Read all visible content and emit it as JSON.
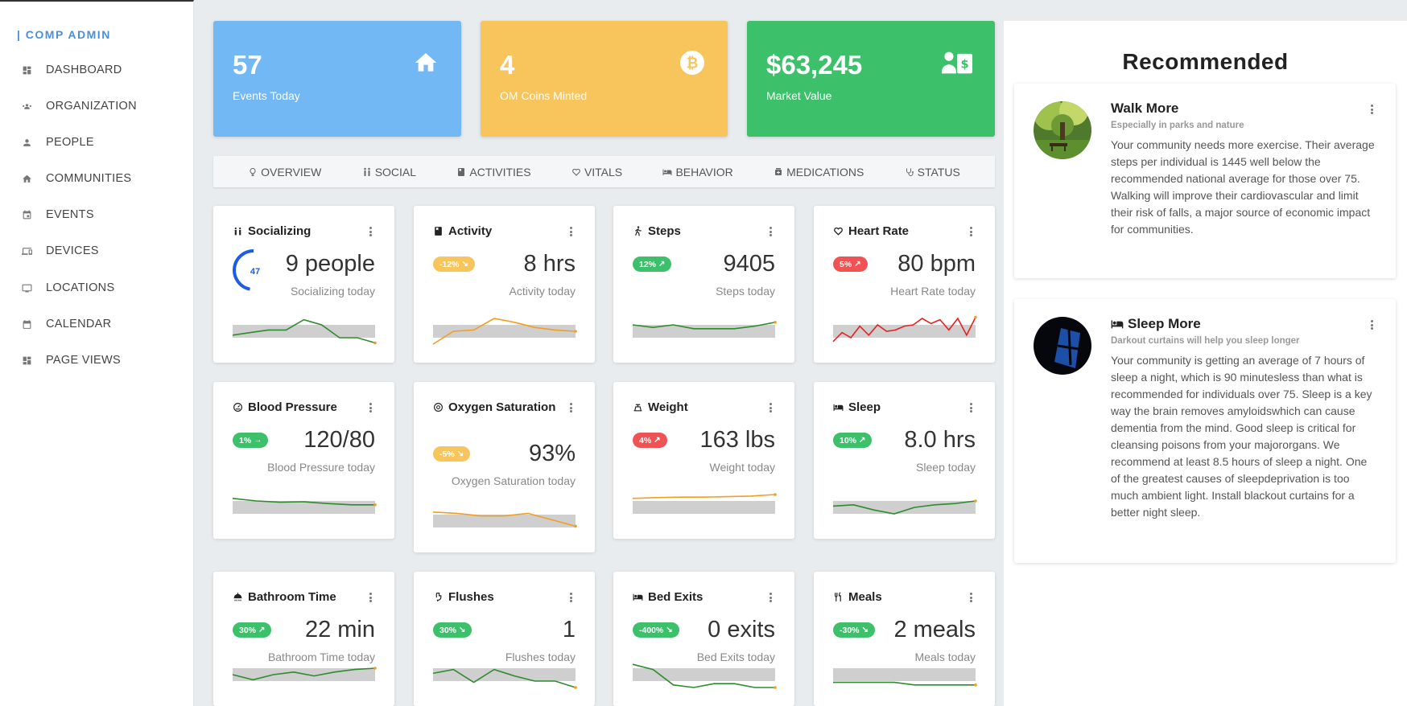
{
  "brand": "| COMP ADMIN",
  "sidebar": {
    "items": [
      {
        "label": "DASHBOARD",
        "icon": "dashboard-icon"
      },
      {
        "label": "ORGANIZATION",
        "icon": "group-icon"
      },
      {
        "label": "PEOPLE",
        "icon": "person-icon"
      },
      {
        "label": "COMMUNITIES",
        "icon": "home-icon"
      },
      {
        "label": "EVENTS",
        "icon": "event-icon"
      },
      {
        "label": "DEVICES",
        "icon": "devices-icon"
      },
      {
        "label": "LOCATIONS",
        "icon": "monitor-icon"
      },
      {
        "label": "CALENDAR",
        "icon": "calendar-icon"
      },
      {
        "label": "PAGE VIEWS",
        "icon": "dashboard-icon"
      }
    ]
  },
  "stats": [
    {
      "value": "57",
      "label": "Events Today",
      "color": "#72b8f5",
      "icon": "home-icon"
    },
    {
      "value": "4",
      "label": "OM Coins Minted",
      "color": "#f8c55c",
      "icon": "bitcoin-icon"
    },
    {
      "value": "$63,245",
      "label": "Market Value",
      "color": "#3cc06a",
      "icon": "dollar-card-icon"
    }
  ],
  "tabs": [
    "OVERVIEW",
    "SOCIAL",
    "ACTIVITIES",
    "VITALS",
    "BEHAVIOR",
    "MEDICATIONS",
    "STATUS"
  ],
  "colors": {
    "green": "#3cc06a",
    "orange": "#f8c55c",
    "red": "#f05353",
    "blue": "#1f5ce6",
    "spark_band": "#cfcfcf"
  },
  "cards": [
    {
      "title": "Socializing",
      "value": "9 people",
      "sub": "Socializing today",
      "gauge": "47",
      "gauge_level": 0.47,
      "line": "#2e8b2e",
      "spark": [
        0.35,
        0.45,
        0.55,
        0.55,
        0.95,
        0.75,
        0.25,
        0.25,
        0.05
      ]
    },
    {
      "title": "Activity",
      "badge": "-12%",
      "badge_color": "#f8c55c",
      "trend": "down",
      "value": "8 hrs",
      "sub": "Activity today",
      "line": "#f59d1e",
      "spark": [
        0.0,
        0.5,
        0.55,
        1.0,
        0.85,
        0.65,
        0.55,
        0.5
      ]
    },
    {
      "title": "Steps",
      "badge": "12%",
      "badge_color": "#3cc06a",
      "trend": "up",
      "value": "9405",
      "sub": "Steps today",
      "line": "#2e8b2e",
      "spark": [
        0.75,
        0.65,
        0.75,
        0.6,
        0.6,
        0.6,
        0.7,
        0.85
      ]
    },
    {
      "title": "Heart Rate",
      "badge": "5%",
      "badge_color": "#f05353",
      "trend": "up",
      "value": "80 bpm",
      "sub": "Heart Rate today",
      "line": "#e82020",
      "spark": [
        0.1,
        0.45,
        0.25,
        0.7,
        0.35,
        0.75,
        0.5,
        0.55,
        0.7,
        0.75,
        1.0,
        0.8,
        0.95,
        0.55,
        1.0,
        0.35,
        1.05
      ]
    },
    {
      "title": "Blood Pressure",
      "badge": "1%",
      "badge_color": "#3cc06a",
      "trend": "right",
      "value": "120/80",
      "sub": "Blood Pressure today",
      "line": "#2e8b2e",
      "spark": [
        0.85,
        0.75,
        0.7,
        0.72,
        0.65,
        0.6,
        0.6
      ]
    },
    {
      "title": "Oxygen Saturation",
      "badge": "-5%",
      "badge_color": "#f8c55c",
      "trend": "down",
      "value": "93%",
      "sub": "Oxygen Saturation today",
      "line": "#f59d1e",
      "spark": [
        0.85,
        0.8,
        0.7,
        0.7,
        0.8,
        0.55,
        0.3
      ]
    },
    {
      "title": "Weight",
      "badge": "4%",
      "badge_color": "#f05353",
      "trend": "up",
      "value": "163 lbs",
      "sub": "Weight today",
      "line": "#f59d1e",
      "spark": [
        0.85,
        0.88,
        0.9,
        0.9,
        0.92,
        0.94,
        1.0
      ]
    },
    {
      "title": "Sleep",
      "badge": "10%",
      "badge_color": "#3cc06a",
      "trend": "up",
      "value": "8.0 hrs",
      "sub": "Sleep today",
      "line": "#2e8b2e",
      "spark": [
        0.55,
        0.6,
        0.4,
        0.25,
        0.5,
        0.6,
        0.65,
        0.75
      ]
    },
    {
      "title": "Bathroom Time",
      "badge": "30%",
      "badge_color": "#3cc06a",
      "trend": "up",
      "value": "22 min",
      "sub": "Bathroom Time today",
      "line": "#2e8b2e",
      "spark": [
        0.5,
        0.3,
        0.5,
        0.6,
        0.45,
        0.6,
        0.7,
        0.75
      ]
    },
    {
      "title": "Flushes",
      "badge": "30%",
      "badge_color": "#3cc06a",
      "trend": "down",
      "value": "1",
      "sub": "Flushes today",
      "line": "#2e8b2e",
      "spark": [
        0.55,
        0.7,
        0.2,
        0.7,
        0.45,
        0.25,
        0.25,
        0.0
      ]
    },
    {
      "title": "Bed Exits",
      "badge": "-400%",
      "badge_color": "#3cc06a",
      "trend": "down",
      "value": "0 exits",
      "sub": "Bed Exits today",
      "line": "#2e8b2e",
      "spark": [
        0.9,
        0.7,
        0.1,
        0.0,
        0.15,
        0.15,
        0.0,
        0.0
      ]
    },
    {
      "title": "Meals",
      "badge": "-30%",
      "badge_color": "#3cc06a",
      "trend": "down",
      "value": "2 meals",
      "sub": "Meals today",
      "line": "#2e8b2e",
      "spark": [
        0.2,
        0.2,
        0.2,
        0.2,
        0.1,
        0.1,
        0.1,
        0.1
      ]
    }
  ],
  "recommended": {
    "title": "Recommended",
    "items": [
      {
        "title": "Walk More",
        "sub": "Especially in parks and nature",
        "body": "Your community needs more exercise. Their average steps per individual is 1445 well below the recommended national average for those over 75. Walking will improve their cardiovascular and limit their risk of falls, a major source of economic impact for communities."
      },
      {
        "title": "Sleep More",
        "sub": "Darkout curtains will help you sleep longer",
        "body": "Your community is getting an average of 7 hours of sleep a night, which is 90 minutesless than what is recommended for individuals over 75. Sleep is a key way the brain removes amyloidswhich can cause dementia from the mind. Good sleep is critical for cleansing poisons from your majororgans. We recommend at least 8.5 hours of sleep a night. One of the greatest causes of sleepdeprivation is too much ambient light. Install blackout curtains for a better night sleep."
      }
    ]
  }
}
